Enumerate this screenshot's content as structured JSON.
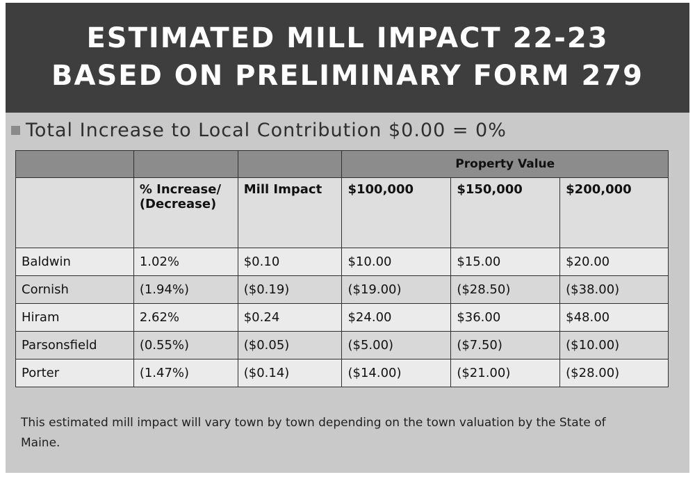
{
  "title": {
    "line1": "ESTIMATED MILL IMPACT 22-23",
    "line2": "BASED ON PRELIMINARY FORM 279"
  },
  "subtitle": "Total Increase to Local Contribution $0.00 = 0%",
  "table": {
    "group_header": "Property Value",
    "headers": {
      "town": "",
      "percent": "% Increase/ (Decrease)",
      "mill": "Mill Impact",
      "v100": "$100,000",
      "v150": "$150,000",
      "v200": "$200,000"
    },
    "rows": [
      {
        "town": "Baldwin",
        "percent": "1.02%",
        "mill": "$0.10",
        "v100": "$10.00",
        "v150": "$15.00",
        "v200": "$20.00"
      },
      {
        "town": "Cornish",
        "percent": "(1.94%)",
        "mill": "($0.19)",
        "v100": "($19.00)",
        "v150": "($28.50)",
        "v200": "($38.00)"
      },
      {
        "town": "Hiram",
        "percent": "2.62%",
        "mill": "$0.24",
        "v100": "$24.00",
        "v150": "$36.00",
        "v200": "$48.00"
      },
      {
        "town": "Parsonsfield",
        "percent": "(0.55%)",
        "mill": "($0.05)",
        "v100": "($5.00)",
        "v150": "($7.50)",
        "v200": "($10.00)"
      },
      {
        "town": "Porter",
        "percent": "(1.47%)",
        "mill": "($0.14)",
        "v100": "($14.00)",
        "v150": "($21.00)",
        "v200": "($28.00)"
      }
    ]
  },
  "footnote": "This estimated mill impact will vary town by town depending on the town valuation by the State of Maine."
}
